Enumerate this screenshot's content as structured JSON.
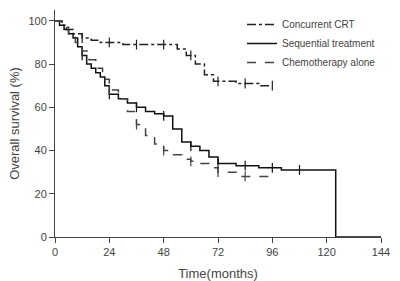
{
  "chart_data": {
    "type": "step",
    "xlabel": "Time(months)",
    "ylabel": "Overall survival (%)",
    "xlim": [
      0,
      144
    ],
    "ylim": [
      0,
      105
    ],
    "xticks": [
      0,
      24,
      48,
      72,
      96,
      120,
      144
    ],
    "yticks": [
      0,
      20,
      40,
      60,
      80,
      100
    ],
    "grid": false,
    "legend": "upper right",
    "series": [
      {
        "name": "Concurrent CRT",
        "line_style": "dashdot",
        "color": "#222222",
        "x": [
          0,
          3,
          5,
          8,
          12,
          16,
          20,
          24,
          30,
          36,
          42,
          48,
          54,
          58,
          62,
          66,
          70,
          72,
          80,
          90,
          96
        ],
        "values": [
          100,
          98,
          96,
          94,
          92,
          91,
          90,
          90,
          89,
          89,
          89,
          89,
          87,
          84,
          80,
          75,
          72,
          72,
          71,
          70,
          70
        ],
        "censored": {
          "x": [
            12,
            24,
            36,
            48,
            60,
            72,
            84,
            96
          ],
          "values": [
            92,
            90,
            89,
            89,
            84,
            72,
            71,
            70
          ]
        }
      },
      {
        "name": "Sequential treatment",
        "line_style": "solid",
        "color": "#111111",
        "x": [
          0,
          2,
          4,
          6,
          8,
          10,
          12,
          14,
          16,
          18,
          20,
          22,
          24,
          28,
          32,
          36,
          40,
          44,
          48,
          52,
          56,
          60,
          64,
          68,
          72,
          80,
          90,
          100,
          108,
          120,
          124,
          144
        ],
        "values": [
          100,
          98,
          96,
          94,
          92,
          88,
          84,
          80,
          78,
          76,
          74,
          70,
          66,
          64,
          62,
          60,
          58,
          57,
          56,
          50,
          44,
          42,
          40,
          37,
          34,
          33,
          32,
          31,
          31,
          31,
          0,
          0
        ],
        "censored": {
          "x": [
            12,
            24,
            36,
            48,
            60,
            72,
            84,
            96,
            108
          ],
          "values": [
            84,
            66,
            60,
            56,
            42,
            34,
            33,
            32,
            31
          ]
        }
      },
      {
        "name": "Chemotherapy alone",
        "line_style": "dashed",
        "color": "#444444",
        "x": [
          0,
          3,
          6,
          9,
          12,
          15,
          18,
          21,
          24,
          28,
          32,
          36,
          40,
          44,
          48,
          52,
          56,
          60,
          64,
          68,
          72,
          80,
          90,
          96
        ],
        "values": [
          100,
          97,
          94,
          90,
          86,
          82,
          78,
          73,
          68,
          64,
          58,
          52,
          47,
          43,
          40,
          38,
          36,
          35,
          34,
          32,
          30,
          28,
          28,
          28
        ],
        "censored": {
          "x": [
            12,
            24,
            36,
            48,
            60,
            72,
            84
          ],
          "values": [
            86,
            68,
            52,
            40,
            35,
            30,
            28
          ]
        }
      }
    ]
  }
}
